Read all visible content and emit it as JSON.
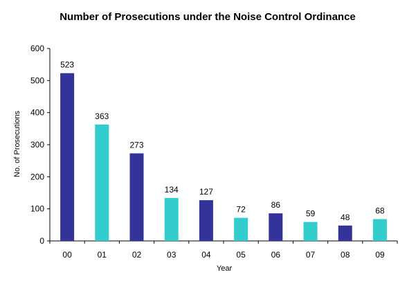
{
  "chart_data": {
    "type": "bar",
    "title": "Number of Prosecutions under the Noise Control Ordinance",
    "xlabel": "Year",
    "ylabel": "No. of Prosecutions",
    "categories": [
      "00",
      "01",
      "02",
      "03",
      "04",
      "05",
      "06",
      "07",
      "08",
      "09"
    ],
    "values": [
      523,
      363,
      273,
      134,
      127,
      72,
      86,
      59,
      48,
      68
    ],
    "ylim": [
      0,
      600
    ],
    "yticks": [
      0,
      100,
      200,
      300,
      400,
      500,
      600
    ],
    "grid": false,
    "legend": "none",
    "colors": [
      "#333399",
      "#33cccc"
    ]
  }
}
